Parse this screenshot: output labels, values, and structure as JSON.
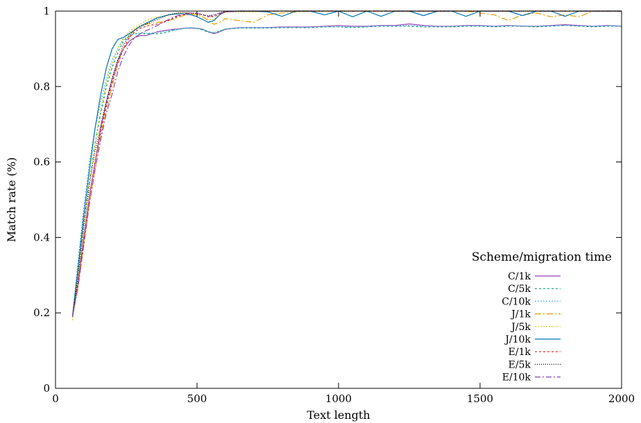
{
  "chart_data": {
    "type": "line",
    "xlabel": "Text length",
    "ylabel": "Match rate (%)",
    "xlim": [
      0,
      2000
    ],
    "ylim": [
      0,
      1
    ],
    "x_ticks": [
      "0",
      "500",
      "1000",
      "1500",
      "2000"
    ],
    "y_ticks": [
      "0",
      "0.2",
      "0.4",
      "0.6",
      "0.8",
      "1"
    ],
    "grid": false,
    "legend": {
      "title": "Scheme/migration time",
      "placement": "bottom-right"
    },
    "x": [
      60,
      80,
      100,
      120,
      140,
      160,
      180,
      200,
      220,
      240,
      260,
      280,
      300,
      320,
      340,
      360,
      380,
      400,
      420,
      440,
      460,
      480,
      500,
      520,
      540,
      560,
      580,
      600,
      650,
      700,
      750,
      800,
      850,
      900,
      950,
      1000,
      1050,
      1100,
      1150,
      1200,
      1250,
      1300,
      1350,
      1400,
      1450,
      1500,
      1550,
      1600,
      1650,
      1700,
      1750,
      1800,
      1850,
      1900,
      1950,
      2000
    ],
    "series": [
      {
        "name": "C/1k",
        "color": "#9b3fb5",
        "dash": "",
        "values": [
          0.19,
          0.28,
          0.4,
          0.51,
          0.6,
          0.69,
          0.76,
          0.82,
          0.87,
          0.9,
          0.92,
          0.93,
          0.935,
          0.935,
          0.94,
          0.945,
          0.948,
          0.95,
          0.952,
          0.953,
          0.955,
          0.955,
          0.954,
          0.952,
          0.945,
          0.94,
          0.945,
          0.952,
          0.956,
          0.956,
          0.956,
          0.958,
          0.958,
          0.958,
          0.96,
          0.962,
          0.96,
          0.96,
          0.962,
          0.962,
          0.966,
          0.962,
          0.96,
          0.96,
          0.962,
          0.962,
          0.96,
          0.962,
          0.96,
          0.96,
          0.962,
          0.964,
          0.962,
          0.96,
          0.962,
          0.96
        ]
      },
      {
        "name": "C/5k",
        "color": "#009e73",
        "dash": "3,3",
        "values": [
          0.19,
          0.31,
          0.44,
          0.55,
          0.65,
          0.73,
          0.8,
          0.85,
          0.89,
          0.92,
          0.935,
          0.94,
          0.94,
          0.94,
          0.94,
          0.94,
          0.942,
          0.945,
          0.95,
          0.952,
          0.955,
          0.955,
          0.954,
          0.95,
          0.944,
          0.942,
          0.946,
          0.952,
          0.955,
          0.955,
          0.955,
          0.956,
          0.956,
          0.956,
          0.958,
          0.958,
          0.956,
          0.958,
          0.96,
          0.96,
          0.96,
          0.958,
          0.958,
          0.958,
          0.96,
          0.96,
          0.958,
          0.96,
          0.96,
          0.958,
          0.96,
          0.962,
          0.96,
          0.958,
          0.96,
          0.96
        ]
      },
      {
        "name": "C/10k",
        "color": "#56b4e9",
        "dash": "2,2",
        "values": [
          0.19,
          0.34,
          0.48,
          0.6,
          0.69,
          0.76,
          0.82,
          0.87,
          0.9,
          0.925,
          0.935,
          0.94,
          0.942,
          0.942,
          0.942,
          0.944,
          0.946,
          0.948,
          0.95,
          0.952,
          0.955,
          0.956,
          0.955,
          0.952,
          0.946,
          0.944,
          0.948,
          0.953,
          0.956,
          0.956,
          0.956,
          0.957,
          0.957,
          0.957,
          0.959,
          0.959,
          0.958,
          0.959,
          0.961,
          0.961,
          0.962,
          0.96,
          0.96,
          0.96,
          0.961,
          0.961,
          0.96,
          0.961,
          0.961,
          0.96,
          0.961,
          0.962,
          0.961,
          0.96,
          0.961,
          0.961
        ]
      },
      {
        "name": "J/1k",
        "color": "#e69f00",
        "dash": "9,3,2,3",
        "values": [
          0.19,
          0.27,
          0.38,
          0.49,
          0.58,
          0.67,
          0.74,
          0.8,
          0.86,
          0.9,
          0.93,
          0.95,
          0.96,
          0.965,
          0.968,
          0.97,
          0.972,
          0.975,
          0.98,
          0.985,
          0.99,
          0.992,
          0.99,
          0.985,
          0.975,
          0.965,
          0.97,
          0.98,
          0.975,
          0.97,
          0.99,
          0.995,
          0.998,
          1.0,
          1.0,
          1.0,
          1.0,
          1.0,
          1.0,
          1.0,
          1.0,
          1.0,
          1.0,
          1.0,
          1.0,
          0.995,
          0.99,
          0.975,
          0.99,
          0.995,
          0.985,
          0.99,
          0.985,
          1.0,
          1.0,
          1.0
        ]
      },
      {
        "name": "J/5k",
        "color": "#d4c800",
        "dash": "2,2",
        "values": [
          0.18,
          0.3,
          0.43,
          0.55,
          0.65,
          0.74,
          0.81,
          0.86,
          0.9,
          0.93,
          0.945,
          0.955,
          0.965,
          0.975,
          0.98,
          0.985,
          0.985,
          0.99,
          0.993,
          0.995,
          0.996,
          0.992,
          0.99,
          0.985,
          0.978,
          0.978,
          0.99,
          0.998,
          0.998,
          0.998,
          0.999,
          1.0,
          1.0,
          1.0,
          1.0,
          1.0,
          1.0,
          1.0,
          1.0,
          1.0,
          1.0,
          1.0,
          1.0,
          1.0,
          1.0,
          1.0,
          1.0,
          1.0,
          1.0,
          1.0,
          1.0,
          1.0,
          1.0,
          1.0,
          1.0,
          1.0
        ]
      },
      {
        "name": "J/10k",
        "color": "#0072b2",
        "dash": "",
        "values": [
          0.19,
          0.32,
          0.46,
          0.58,
          0.69,
          0.78,
          0.85,
          0.9,
          0.925,
          0.93,
          0.94,
          0.95,
          0.96,
          0.968,
          0.975,
          0.982,
          0.986,
          0.99,
          0.992,
          0.993,
          0.992,
          0.99,
          0.985,
          0.978,
          0.97,
          0.975,
          0.99,
          0.998,
          1.0,
          1.0,
          0.998,
          0.986,
          1.0,
          1.0,
          0.99,
          1.0,
          0.985,
          1.0,
          0.986,
          1.0,
          1.0,
          0.988,
          1.0,
          1.0,
          0.986,
          1.0,
          1.0,
          1.0,
          0.988,
          1.0,
          1.0,
          0.986,
          1.0,
          1.0,
          1.0,
          1.0
        ]
      },
      {
        "name": "E/1k",
        "color": "#e51e10",
        "dash": "3,3",
        "values": [
          0.19,
          0.28,
          0.4,
          0.51,
          0.6,
          0.68,
          0.75,
          0.81,
          0.86,
          0.9,
          0.93,
          0.945,
          0.955,
          0.96,
          0.963,
          0.966,
          0.97,
          0.975,
          0.982,
          0.988,
          0.992,
          0.994,
          0.995,
          0.99,
          0.985,
          0.985,
          0.992,
          0.998,
          1.0,
          1.0,
          1.0,
          1.0,
          1.0,
          1.0,
          1.0,
          1.0,
          1.0,
          1.0,
          1.0,
          1.0,
          1.0,
          1.0,
          1.0,
          1.0,
          1.0,
          1.0,
          1.0,
          1.0,
          1.0,
          1.0,
          1.0,
          1.0,
          1.0,
          1.0,
          1.0,
          1.0
        ]
      },
      {
        "name": "E/5k",
        "color": "#000000",
        "dash": "1,2",
        "values": [
          0.19,
          0.3,
          0.43,
          0.54,
          0.63,
          0.7,
          0.76,
          0.82,
          0.87,
          0.91,
          0.935,
          0.95,
          0.96,
          0.965,
          0.972,
          0.978,
          0.984,
          0.99,
          0.994,
          0.996,
          0.996,
          0.995,
          0.993,
          0.99,
          0.988,
          0.99,
          0.995,
          0.999,
          1.0,
          1.0,
          1.0,
          1.0,
          1.0,
          1.0,
          1.0,
          1.0,
          1.0,
          1.0,
          1.0,
          1.0,
          1.0,
          1.0,
          1.0,
          1.0,
          1.0,
          1.0,
          1.0,
          1.0,
          1.0,
          1.0,
          1.0,
          1.0,
          1.0,
          1.0,
          1.0,
          1.0
        ]
      },
      {
        "name": "E/10k",
        "color": "#8e44ad",
        "dash": "8,3,2,3",
        "values": [
          0.19,
          0.27,
          0.38,
          0.49,
          0.58,
          0.66,
          0.73,
          0.78,
          0.84,
          0.88,
          0.91,
          0.93,
          0.94,
          0.948,
          0.955,
          0.962,
          0.97,
          0.978,
          0.985,
          0.99,
          0.994,
          0.995,
          0.994,
          0.99,
          0.986,
          0.988,
          0.994,
          0.998,
          1.0,
          1.0,
          1.0,
          1.0,
          1.0,
          1.0,
          1.0,
          1.0,
          1.0,
          1.0,
          1.0,
          1.0,
          1.0,
          1.0,
          1.0,
          1.0,
          1.0,
          1.0,
          1.0,
          1.0,
          1.0,
          1.0,
          1.0,
          1.0,
          1.0,
          1.0,
          1.0,
          1.0
        ]
      }
    ]
  }
}
